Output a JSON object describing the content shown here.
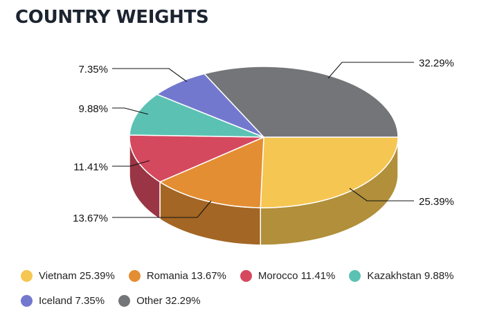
{
  "chart_data": {
    "type": "pie",
    "title": "COUNTRY WEIGHTS",
    "slices": [
      {
        "name": "Vietnam",
        "value": 25.39,
        "label": "25.39%",
        "legend": "Vietnam 25.39%",
        "color": "#F6C652"
      },
      {
        "name": "Romania",
        "value": 13.67,
        "label": "13.67%",
        "legend": "Romania 13.67%",
        "color": "#E38E32"
      },
      {
        "name": "Morocco",
        "value": 11.41,
        "label": "11.41%",
        "legend": "Morocco 11.41%",
        "color": "#D5495F"
      },
      {
        "name": "Kazakhstan",
        "value": 9.88,
        "label": "9.88%",
        "legend": "Kazakhstan 9.88%",
        "color": "#5BC2B3"
      },
      {
        "name": "Iceland",
        "value": 7.35,
        "label": "7.35%",
        "legend": "Iceland 7.35%",
        "color": "#7378CF"
      },
      {
        "name": "Other",
        "value": 32.29,
        "label": "32.29%",
        "legend": "Other 32.29%",
        "color": "#737578"
      }
    ],
    "legend_position": "bottom",
    "style": "3d"
  }
}
